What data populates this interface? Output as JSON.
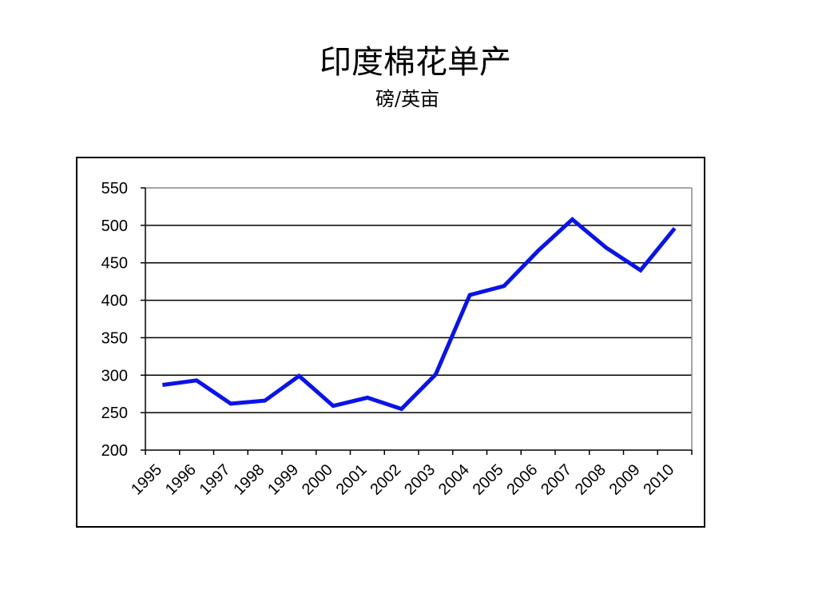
{
  "chart_data": {
    "type": "line",
    "title": "印度棉花单产",
    "subtitle": "磅/英亩",
    "categories": [
      "1995",
      "1996",
      "1997",
      "1998",
      "1999",
      "2000",
      "2001",
      "2002",
      "2003",
      "2004",
      "2005",
      "2006",
      "2007",
      "2008",
      "2009",
      "2010"
    ],
    "series": [
      {
        "values": [
          287,
          293,
          262,
          266,
          299,
          259,
          270,
          255,
          301,
          407,
          419,
          466,
          508,
          470,
          440,
          496
        ]
      }
    ],
    "ylim": [
      200,
      550
    ],
    "yticks": [
      200,
      250,
      300,
      350,
      400,
      450,
      500,
      550
    ],
    "grid": true,
    "line_color": "#0a14e6"
  }
}
